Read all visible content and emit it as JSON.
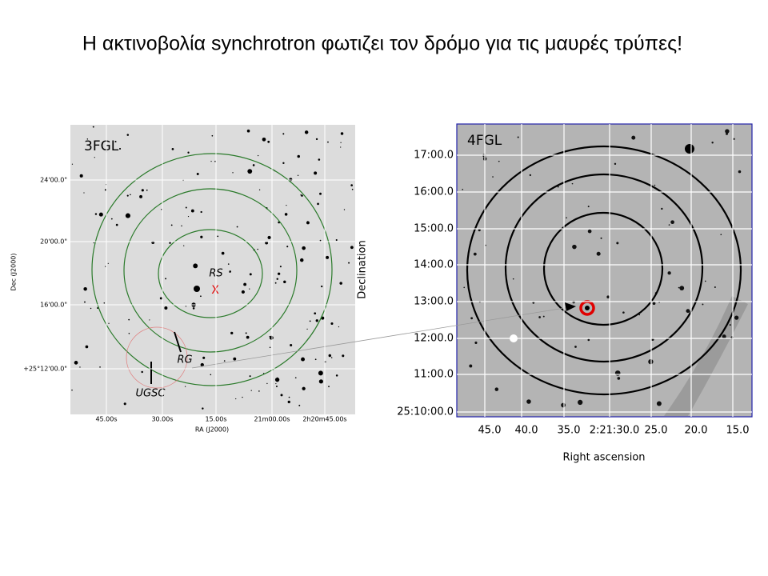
{
  "title": "Η ακτινοβολία synchrotron φωτιζει τον δρόμο για τις μαυρές τρύπες!",
  "left_panel": {
    "label": "3FGL",
    "y_axis_title": "Dec (J2000)",
    "y_ticks": [
      "24'00.0\"",
      "20'00.0\"",
      "16'00.0\"",
      "+25°12'00.0\""
    ],
    "x_axis_title": "RA (J2000)",
    "x_ticks": [
      "45.00s",
      "30.00s",
      "15.00s",
      "21m00.00s",
      "2h20m45.00s"
    ],
    "annotations": [
      "RS",
      "X",
      "RG",
      "UGSC"
    ]
  },
  "right_panel": {
    "label": "4FGL",
    "y_axis_title": "Declination",
    "y_ticks": [
      "17:00.0",
      "16:00.0",
      "15:00.0",
      "14:00.0",
      "13:00.0",
      "12:00.0",
      "11:00.0",
      "25:10:00.0"
    ],
    "x_axis_title": "Right ascension",
    "x_ticks": [
      "45.0",
      "40.0",
      "35.0",
      "2:21:30.0",
      "25.0",
      "20.0",
      "15.0"
    ]
  }
}
